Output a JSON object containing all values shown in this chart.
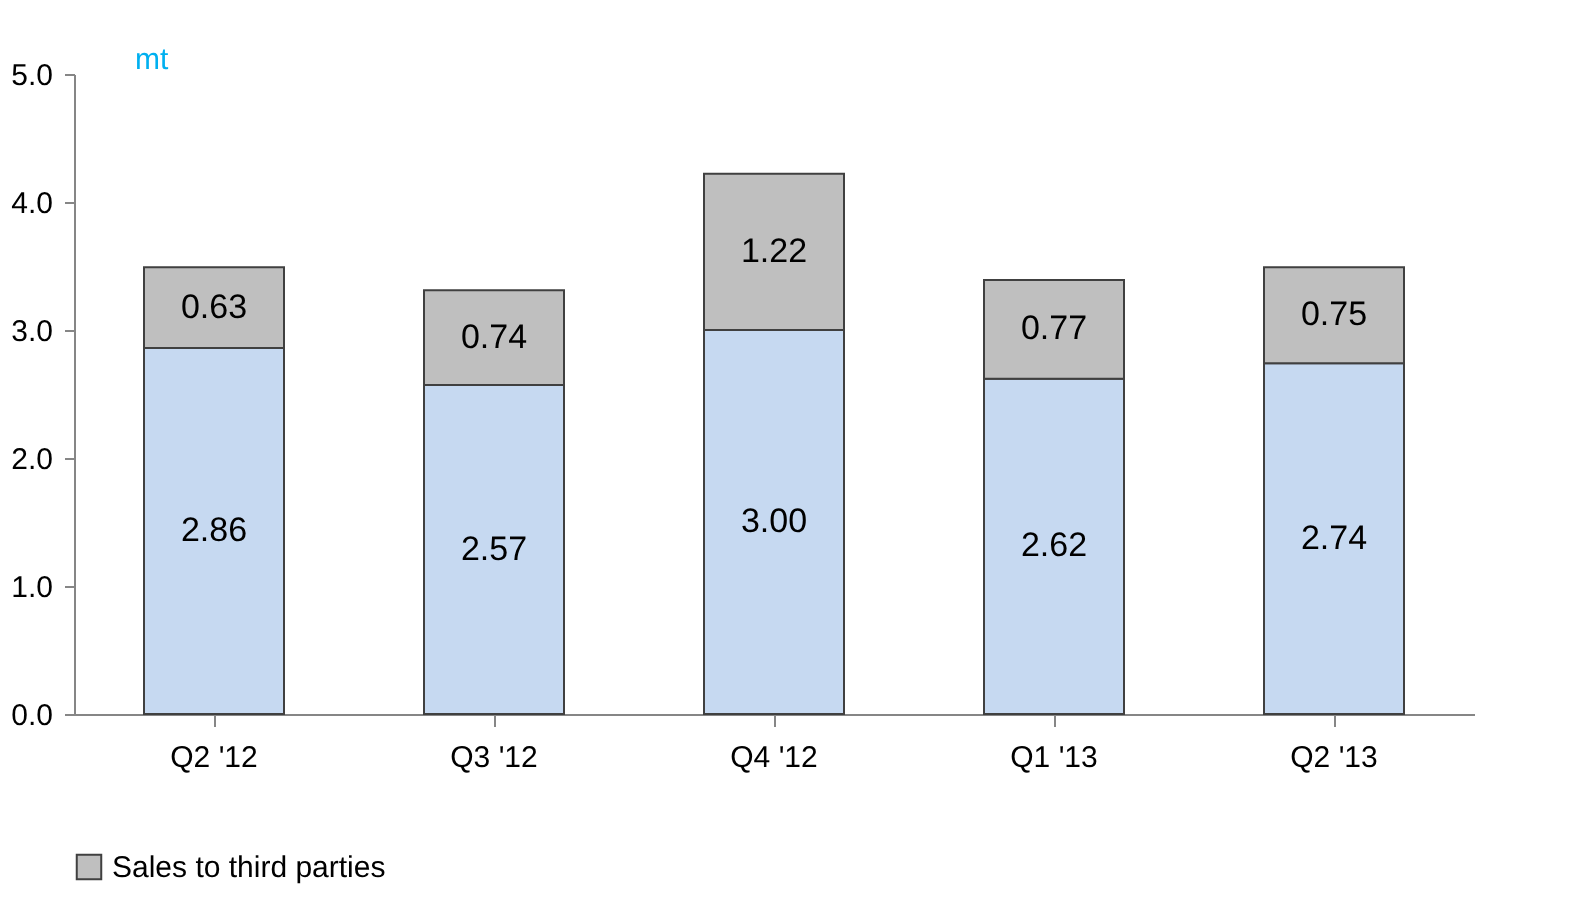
{
  "chart_data": {
    "type": "bar",
    "ylabel": "mt",
    "categories": [
      "Q2 '12",
      "Q3 '12",
      "Q4 '12",
      "Q1 '13",
      "Q2 '13"
    ],
    "series": [
      {
        "color": "#c6d9f1",
        "values": [
          2.86,
          2.57,
          3.0,
          2.62,
          2.74
        ],
        "value_labels": [
          "2.86",
          "2.57",
          "3.00",
          "2.62",
          "2.74"
        ]
      },
      {
        "name": "Sales to third parties",
        "color": "#bfbfbf",
        "values": [
          0.63,
          0.74,
          1.22,
          0.77,
          0.75
        ],
        "value_labels": [
          "0.63",
          "0.74",
          "1.22",
          "0.77",
          "0.75"
        ]
      }
    ],
    "stacked": true,
    "ylim": [
      0,
      5
    ],
    "yticks": [
      {
        "value": 0,
        "label": "0.0"
      },
      {
        "value": 1,
        "label": "1.0"
      },
      {
        "value": 2,
        "label": "2.0"
      },
      {
        "value": 3,
        "label": "3.0"
      },
      {
        "value": 4,
        "label": "4.0"
      },
      {
        "value": 5,
        "label": "5.0"
      }
    ],
    "grid": false,
    "legend": "bottom"
  }
}
